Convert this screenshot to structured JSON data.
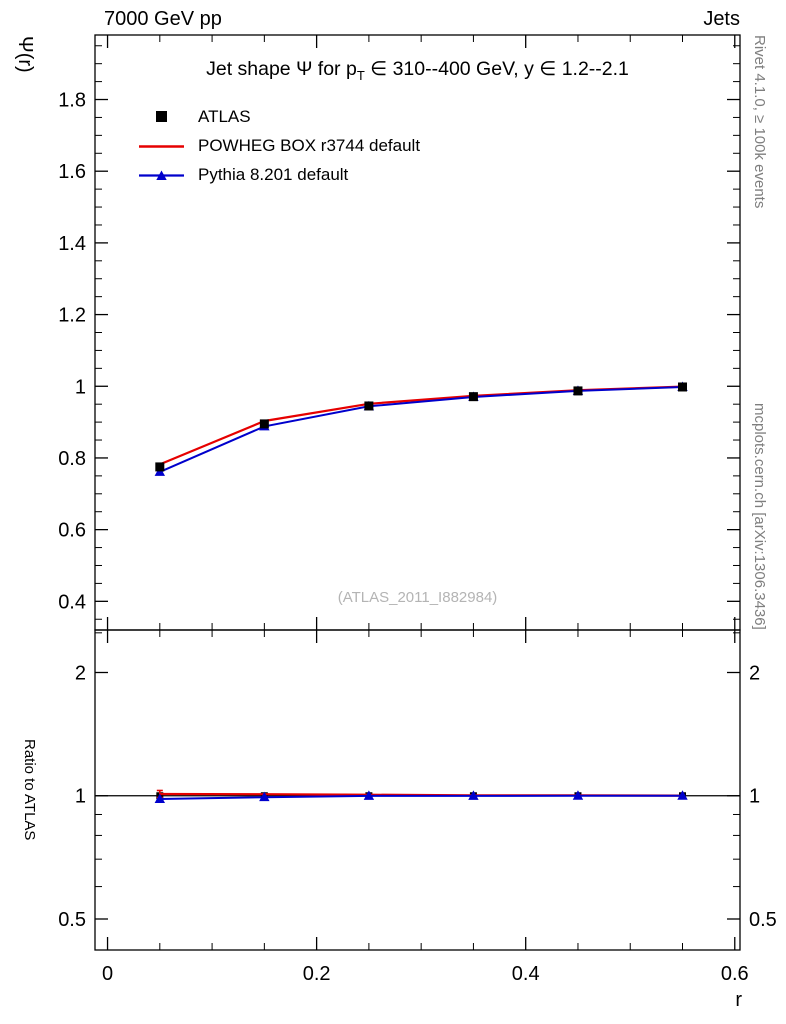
{
  "header": {
    "left": "7000 GeV pp",
    "right": "Jets"
  },
  "side_notes": {
    "top_right": "Rivet 4.1.0, ≥ 100k events",
    "bottom_right": "mcplots.cern.ch [arXiv:1306.3436]"
  },
  "watermark": "(ATLAS_2011_I882984)",
  "title": {
    "pre": "Jet shape Ψ for p",
    "sub": "T",
    "post": " ∈ 310--400 GeV, y ∈ 1.2--2.1"
  },
  "axes": {
    "ylabel": "Ψ(r)",
    "ratio_ylabel": "Ratio to ATLAS",
    "xlabel": "r"
  },
  "legend": [
    {
      "label": "ATLAS",
      "marker": "square",
      "color": "#000000"
    },
    {
      "label": "POWHEG BOX r3744 default",
      "marker": "line",
      "color": "#e60000"
    },
    {
      "label": "Pythia 8.201 default",
      "marker": "line-triangle",
      "color": "#0000cc"
    }
  ],
  "chart_data": {
    "type": "line",
    "title": "Jet shape Ψ for pT ∈ 310--400 GeV, y ∈ 1.2--2.1",
    "xlabel": "r",
    "ylabel": "Ψ(r)",
    "ratio_ylabel": "Ratio to ATLAS",
    "x": [
      0.05,
      0.15,
      0.25,
      0.35,
      0.45,
      0.55
    ],
    "series": [
      {
        "name": "ATLAS",
        "style": "marker-square",
        "color": "#000000",
        "values": [
          0.775,
          0.895,
          0.945,
          0.971,
          0.987,
          0.998
        ],
        "errors": [
          0.008,
          0.006,
          0.004,
          0.003,
          0.002,
          0.002
        ]
      },
      {
        "name": "POWHEG BOX r3744 default",
        "style": "line",
        "color": "#e60000",
        "values": [
          0.782,
          0.903,
          0.951,
          0.973,
          0.989,
          0.999
        ]
      },
      {
        "name": "Pythia 8.201 default",
        "style": "line-triangle",
        "color": "#0000cc",
        "values": [
          0.761,
          0.888,
          0.944,
          0.97,
          0.987,
          0.998
        ]
      }
    ],
    "ratio_series": [
      {
        "name": "POWHEG BOX r3744 default",
        "color": "#e60000",
        "values": [
          1.01,
          1.009,
          1.006,
          1.002,
          1.002,
          1.001
        ],
        "errors": [
          0.02,
          0.004,
          0.003,
          0.002,
          0.002,
          0.002
        ]
      },
      {
        "name": "Pythia 8.201 default",
        "color": "#0000cc",
        "values": [
          0.982,
          0.992,
          0.999,
          0.999,
          1.0,
          1.0
        ],
        "errors": [
          0,
          0,
          0,
          0,
          0,
          0
        ]
      }
    ],
    "main_axis": {
      "ylim": [
        0.32,
        1.98
      ],
      "yticks": [
        0.4,
        0.6,
        0.8,
        1.0,
        1.2,
        1.4,
        1.6,
        1.8
      ],
      "yminor_step": 0.05,
      "scale": "linear",
      "grid": false
    },
    "ratio_axis": {
      "ylim": [
        0.42,
        2.54
      ],
      "yticks": [
        0.5,
        1,
        2
      ],
      "yminors": [
        0.6,
        0.7,
        0.8,
        0.9,
        2.5
      ],
      "scale": "log",
      "reference_line": 1
    },
    "x_axis": {
      "xlim": [
        -0.012,
        0.605
      ],
      "xticks": [
        0,
        0.2,
        0.4,
        0.6
      ],
      "xminor_step": 0.05
    },
    "legend_position": "top-left"
  }
}
